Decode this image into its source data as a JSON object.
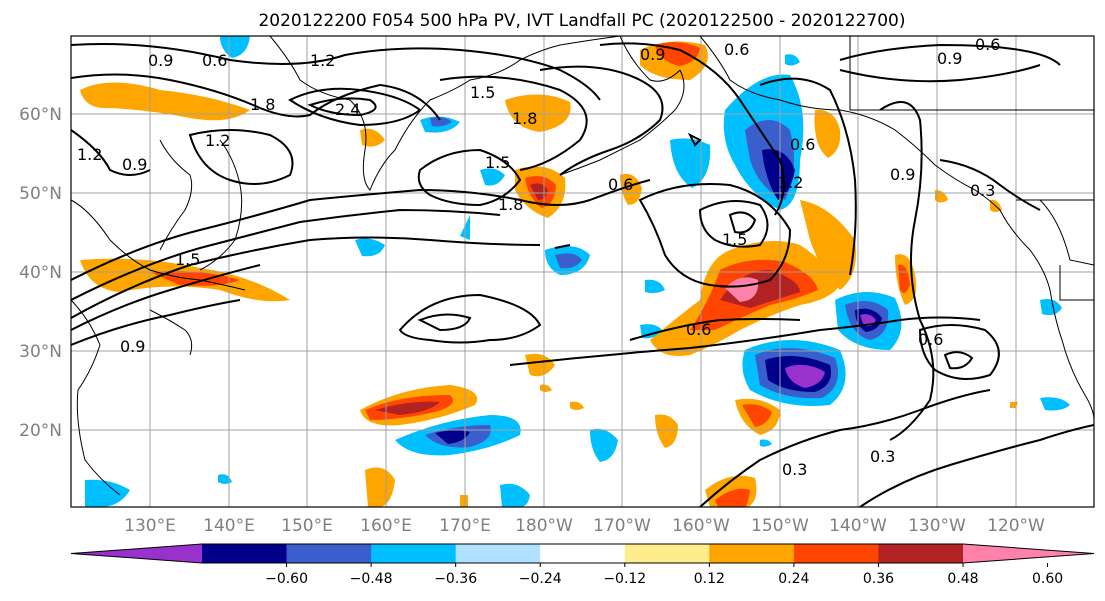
{
  "title": "2020122200 F054 500 hPa PV, IVT Landfall PC (2020122500 - 2020122700)",
  "lat_labels": [
    "20°N",
    "30°N",
    "40°N",
    "50°N",
    "60°N"
  ],
  "lon_labels": [
    "130°E",
    "140°E",
    "150°E",
    "160°E",
    "170°E",
    "180°W",
    "170°W",
    "160°W",
    "150°W",
    "140°W",
    "130°W",
    "120°W"
  ],
  "colorbar": {
    "ticks": [
      "−0.60",
      "−0.48",
      "−0.36",
      "−0.24",
      "−0.12",
      "0.12",
      "0.24",
      "0.36",
      "0.48",
      "0.60"
    ],
    "colors": [
      "#9932cc",
      "#00008b",
      "#3a5fcd",
      "#00bfff",
      "#b0e2ff",
      "#ffffff",
      "#ffec8b",
      "#ffa500",
      "#ff4500",
      "#b22222",
      "#ff82ab"
    ]
  },
  "contour_labels": [
    "0.9",
    "0.6",
    "1.2",
    "1.8",
    "2.4",
    "1.5",
    "1.2",
    "0.9",
    "1.8",
    "1.5",
    "0.6",
    "1.8",
    "0.9",
    "0.6",
    "1.2",
    "1.5",
    "0.6",
    "0.9",
    "0.6",
    "0.3",
    "0.3",
    "0.6",
    "0.3",
    "0.9",
    "0.6",
    "1.5",
    "1.2",
    "0.9"
  ]
}
